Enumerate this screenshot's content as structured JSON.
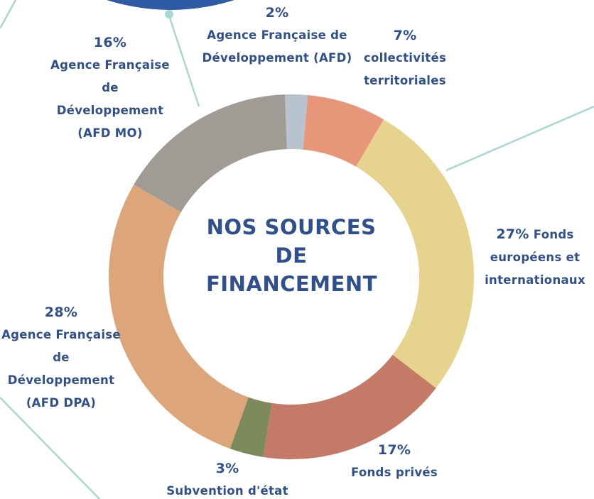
{
  "chart_data": {
    "type": "pie",
    "title": "NOS SOURCES DE FINANCEMENT",
    "categories": [
      "Agence Française de Développement (AFD)",
      "collectivités territoriales",
      "Fonds européens et internationaux",
      "Fonds privés",
      "Subvention d'état",
      "Agence Française de Développement (AFD DPA)",
      "Agence Française de Développement (AFD MO)"
    ],
    "values": [
      2,
      7,
      27,
      17,
      3,
      28,
      16
    ],
    "value_labels": [
      "2%",
      "7%",
      "27%",
      "17%",
      "3%",
      "28%",
      "16%"
    ],
    "colors": [
      "#b9c3cf",
      "#e8967a",
      "#e6d48e",
      "#c47a66",
      "#7f8a5c",
      "#dca57a",
      "#a09b94"
    ]
  }
}
